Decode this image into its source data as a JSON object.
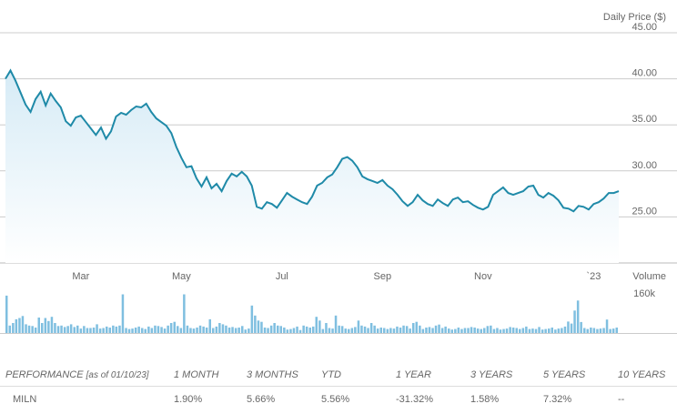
{
  "chart_data": {
    "type": "line",
    "price": {
      "ylabel": "Daily Price ($)",
      "yticks": [
        "45.00",
        "40.00",
        "35.00",
        "30.00",
        "25.00"
      ],
      "ylim": [
        20,
        45
      ],
      "xlabels": [
        "Mar",
        "May",
        "Jul",
        "Sep",
        "Nov",
        "`23"
      ],
      "xlabel_positions": [
        1.5,
        3.5,
        5.5,
        7.5,
        9.5,
        11.7
      ],
      "x_months": [
        0,
        0.1,
        0.2,
        0.3,
        0.4,
        0.5,
        0.6,
        0.7,
        0.8,
        0.9,
        1.0,
        1.1,
        1.2,
        1.3,
        1.4,
        1.5,
        1.6,
        1.7,
        1.8,
        1.9,
        2.0,
        2.1,
        2.2,
        2.3,
        2.4,
        2.5,
        2.6,
        2.7,
        2.8,
        2.9,
        3.0,
        3.1,
        3.2,
        3.3,
        3.4,
        3.5,
        3.6,
        3.7,
        3.8,
        3.9,
        4.0,
        4.1,
        4.2,
        4.3,
        4.4,
        4.5,
        4.6,
        4.7,
        4.8,
        4.9,
        5.0,
        5.1,
        5.2,
        5.3,
        5.4,
        5.5,
        5.6,
        5.7,
        5.8,
        5.9,
        6.0,
        6.1,
        6.2,
        6.3,
        6.4,
        6.5,
        6.6,
        6.7,
        6.8,
        6.9,
        7.0,
        7.1,
        7.2,
        7.3,
        7.4,
        7.5,
        7.6,
        7.7,
        7.8,
        7.9,
        8.0,
        8.1,
        8.2,
        8.3,
        8.4,
        8.5,
        8.6,
        8.7,
        8.8,
        8.9,
        9.0,
        9.1,
        9.2,
        9.3,
        9.4,
        9.5,
        9.6,
        9.7,
        9.8,
        9.9,
        10.0,
        10.1,
        10.2,
        10.3,
        10.4,
        10.5,
        10.6,
        10.7,
        10.8,
        10.9,
        11.0,
        11.1,
        11.2,
        11.3,
        11.4,
        11.5,
        11.6,
        11.7,
        11.8,
        11.9,
        12.0,
        12.1,
        12.2
      ],
      "values": [
        40.0,
        40.9,
        39.8,
        38.5,
        37.2,
        36.4,
        37.8,
        38.6,
        37.1,
        38.4,
        37.6,
        36.9,
        35.4,
        34.9,
        35.8,
        36.0,
        35.3,
        34.6,
        33.9,
        34.7,
        33.5,
        34.3,
        35.9,
        36.3,
        36.1,
        36.6,
        37.0,
        36.9,
        37.3,
        36.4,
        35.7,
        35.3,
        34.9,
        34.1,
        32.6,
        31.4,
        30.4,
        30.5,
        29.2,
        28.3,
        29.3,
        28.1,
        28.6,
        27.8,
        28.9,
        29.7,
        29.4,
        29.9,
        29.4,
        28.4,
        26.1,
        25.9,
        26.6,
        26.4,
        26.0,
        26.8,
        27.6,
        27.2,
        26.9,
        26.6,
        26.4,
        27.2,
        28.4,
        28.7,
        29.3,
        29.6,
        30.4,
        31.3,
        31.5,
        31.1,
        30.4,
        29.4,
        29.1,
        28.9,
        28.7,
        29.0,
        28.4,
        28.0,
        27.4,
        26.7,
        26.2,
        26.6,
        27.4,
        26.8,
        26.4,
        26.2,
        26.9,
        26.5,
        26.2,
        26.9,
        27.1,
        26.6,
        26.7,
        26.3,
        26.0,
        25.8,
        26.1,
        27.4,
        27.8,
        28.2,
        27.6,
        27.4,
        27.6,
        27.8,
        28.3,
        28.4,
        27.4,
        27.1,
        27.6,
        27.3,
        26.8,
        26.0,
        25.9,
        25.6,
        26.2,
        26.1,
        25.8,
        26.4,
        26.6,
        27.0,
        27.6,
        27.6,
        27.8
      ]
    },
    "volume": {
      "ylabel": "Volume",
      "ytick": "160k",
      "ylim": [
        0,
        175
      ],
      "values": [
        150,
        30,
        40,
        55,
        60,
        68,
        35,
        30,
        28,
        22,
        62,
        40,
        60,
        48,
        65,
        40,
        28,
        30,
        24,
        28,
        35,
        24,
        30,
        18,
        28,
        20,
        20,
        22,
        35,
        18,
        20,
        26,
        22,
        30,
        26,
        30,
        155,
        20,
        16,
        18,
        22,
        26,
        20,
        16,
        26,
        20,
        30,
        28,
        24,
        18,
        30,
        40,
        45,
        28,
        20,
        155,
        30,
        20,
        18,
        22,
        30,
        26,
        22,
        55,
        20,
        26,
        40,
        35,
        30,
        22,
        24,
        20,
        22,
        28,
        14,
        18,
        110,
        70,
        50,
        45,
        22,
        20,
        30,
        40,
        30,
        28,
        22,
        14,
        16,
        20,
        26,
        12,
        30,
        26,
        22,
        26,
        65,
        50,
        16,
        40,
        20,
        18,
        70,
        30,
        28,
        18,
        16,
        20,
        24,
        50,
        30,
        26,
        20,
        40,
        30,
        18,
        22,
        20,
        16,
        20,
        18,
        26,
        22,
        30,
        28,
        18,
        40,
        45,
        30,
        16,
        22,
        24,
        20,
        30,
        34,
        20,
        26,
        18,
        14,
        16,
        22,
        16,
        20,
        20,
        24,
        22,
        18,
        16,
        20,
        28,
        30,
        16,
        20,
        14,
        16,
        18,
        24,
        22,
        20,
        16,
        20,
        26,
        16,
        18,
        16,
        24,
        14,
        16,
        18,
        22,
        14,
        18,
        20,
        26,
        46,
        38,
        90,
        130,
        44,
        20,
        16,
        22,
        20,
        16,
        18,
        20,
        54,
        16,
        18,
        22
      ]
    }
  },
  "performance": {
    "header": {
      "label": "PERFORMANCE",
      "asof": "[as of 01/10/23]",
      "periods": [
        "1 MONTH",
        "3 MONTHS",
        "YTD",
        "1 YEAR",
        "3 YEARS",
        "5 YEARS",
        "10 YEARS"
      ]
    },
    "rows": [
      {
        "ticker": "MILN",
        "values": [
          "1.90%",
          "5.66%",
          "5.56%",
          "-31.32%",
          "1.58%",
          "7.32%",
          "--"
        ]
      }
    ]
  },
  "colors": {
    "line": "#1f8aa8",
    "area_top": "#d6ebf6",
    "area_bottom": "#ffffff",
    "volume_bar": "#7fbfe0",
    "grid": "#cccccc",
    "axis": "#bbbbbb"
  }
}
